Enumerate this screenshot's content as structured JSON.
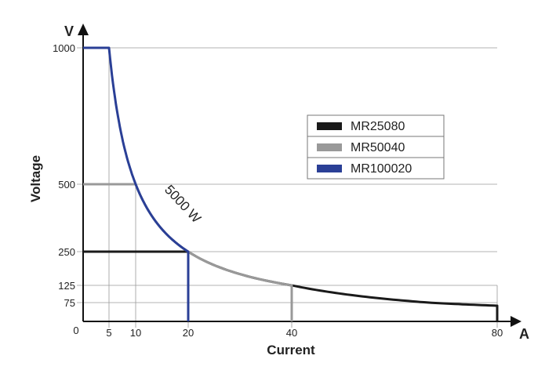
{
  "chart_data": {
    "type": "line",
    "title": "",
    "xlabel": "Current",
    "ylabel": "Voltage",
    "x_unit": "A",
    "y_unit": "V",
    "xlim": [
      0,
      80
    ],
    "ylim": [
      0,
      1000
    ],
    "x_ticks": [
      0,
      5,
      10,
      20,
      40,
      80
    ],
    "y_ticks": [
      75,
      125,
      250,
      500,
      1000
    ],
    "grid": "reference lines at tick values",
    "legend_position": "top-right",
    "annotation": "5000 W",
    "power_limit_w": 5000,
    "series": [
      {
        "name": "MR25080",
        "color": "#1a1a1a",
        "max_voltage": 250,
        "max_current": 80
      },
      {
        "name": "MR50040",
        "color": "#999999",
        "max_voltage": 500,
        "max_current": 40
      },
      {
        "name": "MR100020",
        "color": "#2a3f96",
        "max_voltage": 1000,
        "max_current": 20
      }
    ]
  }
}
